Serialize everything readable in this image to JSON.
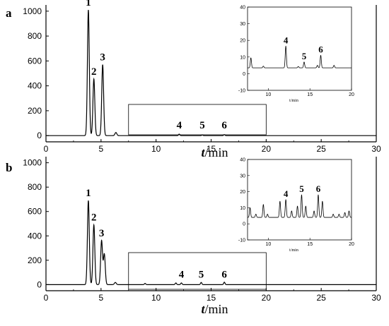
{
  "chart_data": [
    {
      "type": "line",
      "panel": "a",
      "xlabel_t": "t",
      "xlabel_unit": "/min",
      "xlim": [
        0,
        30
      ],
      "ylim": [
        -50,
        1050
      ],
      "xticks": [
        0,
        5,
        10,
        15,
        20,
        25,
        30
      ],
      "yticks": [
        0,
        200,
        400,
        600,
        800,
        1000
      ],
      "peaks": [
        {
          "label": "1",
          "x": 3.85,
          "y": 1010
        },
        {
          "label": "2",
          "x": 4.35,
          "y": 455
        },
        {
          "label": "3",
          "x": 5.15,
          "y": 570
        },
        {
          "label": "",
          "x": 6.35,
          "y": 25
        },
        {
          "label": "4",
          "x": 12.1,
          "y": 12
        },
        {
          "label": "5",
          "x": 14.2,
          "y": 5
        },
        {
          "label": "6",
          "x": 16.2,
          "y": 8
        }
      ],
      "zoom_box": {
        "x": [
          7.5,
          20
        ],
        "y": [
          -15,
          180
        ]
      },
      "inset": {
        "xlabel": "t/min",
        "xlim": [
          7.5,
          20
        ],
        "ylim": [
          -10,
          40
        ],
        "xticks": [
          10,
          15,
          20
        ],
        "yticks": [
          -10,
          0,
          10,
          20,
          30,
          40
        ],
        "baseline": 3.5,
        "peaks": [
          {
            "label": "",
            "x": 7.9,
            "y": 6
          },
          {
            "label": "",
            "x": 9.4,
            "y": 1
          },
          {
            "label": "4",
            "x": 12.1,
            "y": 13
          },
          {
            "label": "",
            "x": 13.6,
            "y": 0.8
          },
          {
            "label": "5",
            "x": 14.3,
            "y": 3.5
          },
          {
            "label": "",
            "x": 15.9,
            "y": 1.5
          },
          {
            "label": "6",
            "x": 16.3,
            "y": 7.5
          },
          {
            "label": "",
            "x": 17.9,
            "y": 1.5
          }
        ]
      }
    },
    {
      "type": "line",
      "panel": "b",
      "xlabel_t": "t",
      "xlabel_unit": "/min",
      "xlim": [
        0,
        30
      ],
      "ylim": [
        -50,
        1050
      ],
      "xticks": [
        0,
        5,
        10,
        15,
        20,
        25,
        30
      ],
      "yticks": [
        0,
        200,
        400,
        600,
        800,
        1000
      ],
      "peaks": [
        {
          "label": "1",
          "x": 3.85,
          "y": 690
        },
        {
          "label": "2",
          "x": 4.35,
          "y": 490
        },
        {
          "label": "3",
          "x": 5.05,
          "y": 360
        },
        {
          "label": "",
          "x": 5.3,
          "y": 250
        },
        {
          "label": "",
          "x": 6.3,
          "y": 18
        },
        {
          "label": "",
          "x": 9.0,
          "y": 10
        },
        {
          "label": "",
          "x": 11.8,
          "y": 14
        },
        {
          "label": "4",
          "x": 12.3,
          "y": 14
        },
        {
          "label": "5",
          "x": 14.1,
          "y": 18
        },
        {
          "label": "6",
          "x": 16.2,
          "y": 20
        }
      ],
      "zoom_box": {
        "x": [
          7.5,
          20
        ],
        "y": [
          -15,
          180
        ]
      },
      "inset": {
        "xlabel": "t/min",
        "xlim": [
          7.5,
          20
        ],
        "ylim": [
          -10,
          40
        ],
        "xticks": [
          10,
          15,
          20
        ],
        "yticks": [
          -10,
          0,
          10,
          20,
          30,
          40
        ],
        "baseline": 4,
        "peaks": [
          {
            "label": "",
            "x": 7.8,
            "y": 6
          },
          {
            "label": "",
            "x": 8.5,
            "y": 2
          },
          {
            "label": "",
            "x": 9.4,
            "y": 8
          },
          {
            "label": "",
            "x": 9.9,
            "y": 2
          },
          {
            "label": "",
            "x": 11.4,
            "y": 10
          },
          {
            "label": "4",
            "x": 12.1,
            "y": 11
          },
          {
            "label": "",
            "x": 12.8,
            "y": 4
          },
          {
            "label": "",
            "x": 13.5,
            "y": 7
          },
          {
            "label": "5",
            "x": 14.0,
            "y": 14
          },
          {
            "label": "",
            "x": 14.5,
            "y": 7
          },
          {
            "label": "",
            "x": 15.5,
            "y": 4
          },
          {
            "label": "6",
            "x": 16.0,
            "y": 14
          },
          {
            "label": "",
            "x": 16.5,
            "y": 10
          },
          {
            "label": "",
            "x": 17.8,
            "y": 2
          },
          {
            "label": "",
            "x": 18.5,
            "y": 2
          },
          {
            "label": "",
            "x": 19.2,
            "y": 3
          },
          {
            "label": "",
            "x": 19.7,
            "y": 4
          }
        ]
      }
    }
  ]
}
